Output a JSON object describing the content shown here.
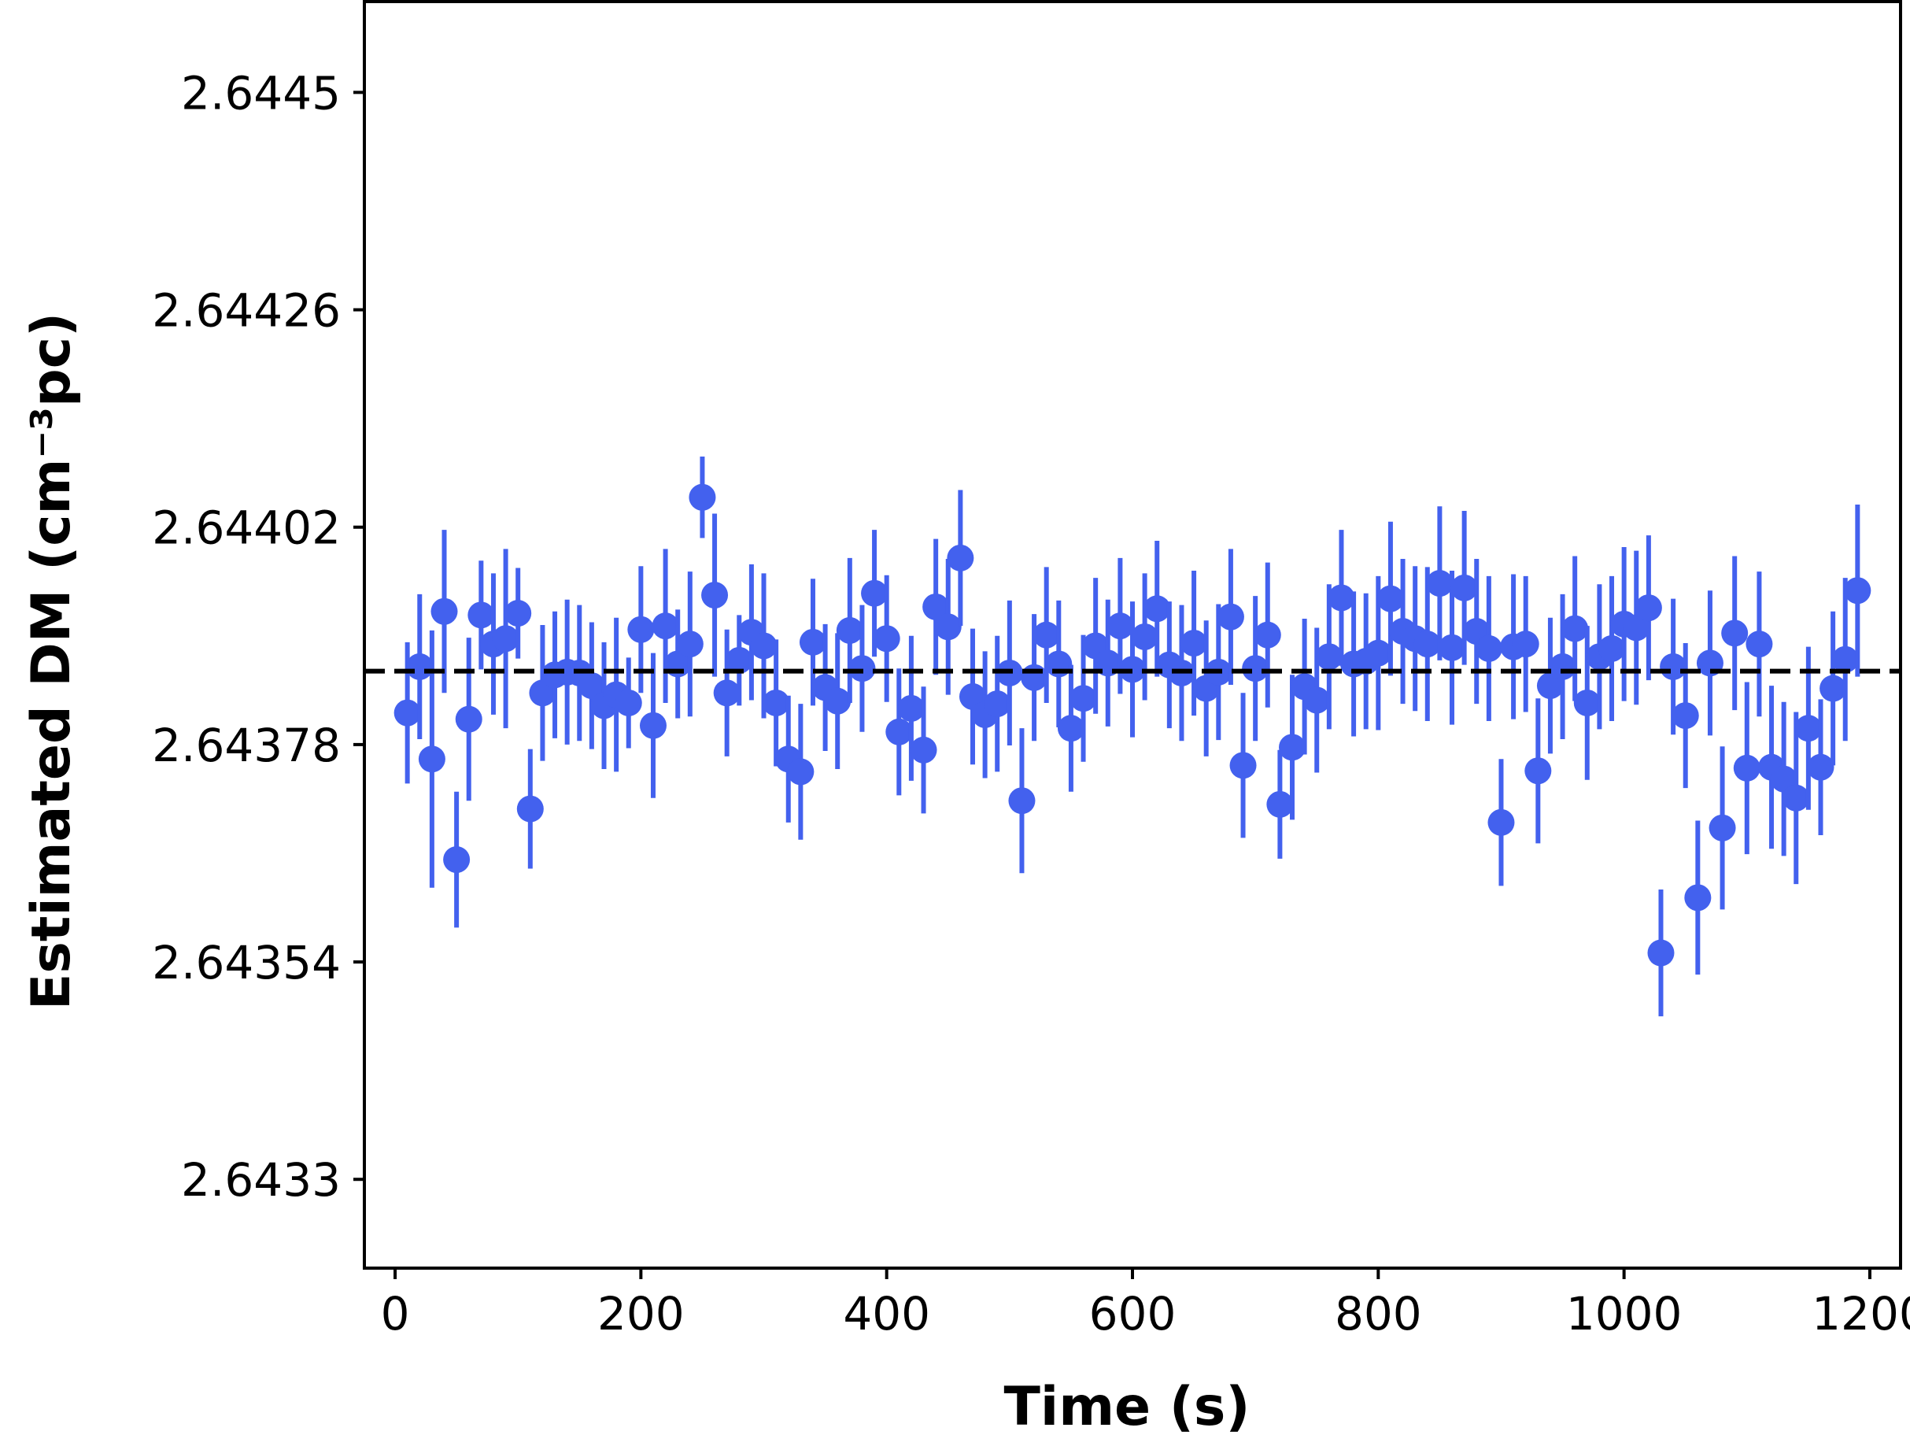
{
  "chart_data": {
    "type": "scatter",
    "xlabel": "Time (s)",
    "ylabel": "Estimated DM (cm⁻³pc)",
    "xlim": [
      -25,
      1225
    ],
    "ylim": [
      2.643202,
      2.644602
    ],
    "x_ticks": [
      0,
      200,
      400,
      600,
      800,
      1000,
      1200
    ],
    "x_tick_labels": [
      "0",
      "200",
      "400",
      "600",
      "800",
      "1000",
      "1200"
    ],
    "y_ticks": [
      2.6433,
      2.64354,
      2.64378,
      2.64402,
      2.64426,
      2.6445
    ],
    "y_tick_labels": [
      "2.6433",
      "2.64354",
      "2.64378",
      "2.64402",
      "2.64426",
      "2.6445"
    ],
    "grid": false,
    "reference_line": {
      "y": 2.643861,
      "style": "dashed",
      "color": "#000000"
    },
    "series": [
      {
        "color": "#4361ee",
        "error_bars": true,
        "x": [
          10,
          20,
          30,
          40,
          50,
          60,
          70,
          80,
          90,
          100,
          110,
          120,
          130,
          140,
          150,
          160,
          170,
          180,
          190,
          200,
          210,
          220,
          230,
          240,
          250,
          260,
          270,
          280,
          290,
          300,
          310,
          320,
          330,
          340,
          350,
          360,
          370,
          380,
          390,
          400,
          410,
          420,
          430,
          440,
          450,
          460,
          470,
          480,
          490,
          500,
          510,
          520,
          530,
          540,
          550,
          560,
          570,
          580,
          590,
          600,
          610,
          620,
          630,
          640,
          650,
          660,
          670,
          680,
          690,
          700,
          710,
          720,
          730,
          740,
          750,
          760,
          770,
          780,
          790,
          800,
          810,
          820,
          830,
          840,
          850,
          860,
          870,
          880,
          890,
          900,
          910,
          920,
          930,
          940,
          950,
          960,
          970,
          980,
          990,
          1000,
          1010,
          1020,
          1030,
          1040,
          1050,
          1060,
          1070,
          1080,
          1090,
          1100,
          1110,
          1120,
          1130,
          1140,
          1150,
          1160,
          1170,
          1180,
          1190
        ],
        "y": [
          2.643815,
          2.643866,
          2.643764,
          2.643927,
          2.643653,
          2.643808,
          2.643923,
          2.643891,
          2.643897,
          2.643925,
          2.643709,
          2.643837,
          2.643857,
          2.64386,
          2.643859,
          2.643845,
          2.643823,
          2.643835,
          2.643826,
          2.643907,
          2.643801,
          2.643911,
          2.643869,
          2.643891,
          2.644053,
          2.643945,
          2.643837,
          2.643873,
          2.643904,
          2.643889,
          2.643826,
          2.643764,
          2.64375,
          2.643893,
          2.643843,
          2.643828,
          2.643906,
          2.643864,
          2.643947,
          2.643897,
          2.643794,
          2.64382,
          2.643774,
          2.643932,
          2.64391,
          2.643986,
          2.643833,
          2.643813,
          2.643825,
          2.643859,
          2.643718,
          2.643854,
          2.643901,
          2.643869,
          2.643798,
          2.643831,
          2.643889,
          2.64387,
          2.643911,
          2.643863,
          2.643899,
          2.64393,
          2.643868,
          2.643859,
          2.643892,
          2.643842,
          2.64386,
          2.643921,
          2.643757,
          2.643864,
          2.643901,
          2.643714,
          2.643777,
          2.643844,
          2.643829,
          2.643877,
          2.643942,
          2.643869,
          2.643872,
          2.643881,
          2.643941,
          2.643905,
          2.643897,
          2.643891,
          2.643958,
          2.643887,
          2.643953,
          2.643905,
          2.643886,
          2.643694,
          2.643888,
          2.643891,
          2.643751,
          2.643845,
          2.643866,
          2.643908,
          2.643826,
          2.643877,
          2.643886,
          2.643913,
          2.643909,
          2.643931,
          2.64355,
          2.643866,
          2.643812,
          2.643611,
          2.64387,
          2.643688,
          2.643903,
          2.643754,
          2.643891,
          2.643755,
          2.643742,
          2.643721,
          2.643798,
          2.643755,
          2.643842,
          2.643874,
          2.64395
        ],
        "err": [
          7.8e-05,
          8e-05,
          0.000142,
          9e-05,
          7.5e-05,
          9e-05,
          6e-05,
          7.8e-05,
          9.9e-05,
          5e-05,
          6.6e-05,
          7.5e-05,
          7e-05,
          8e-05,
          7.5e-05,
          7e-05,
          7e-05,
          8.5e-05,
          5e-05,
          7e-05,
          8e-05,
          8.5e-05,
          6e-05,
          8e-05,
          4.5e-05,
          9e-05,
          7e-05,
          5e-05,
          7.5e-05,
          8e-05,
          7e-05,
          7e-05,
          7.5e-05,
          7e-05,
          7e-05,
          7.5e-05,
          8e-05,
          7e-05,
          7e-05,
          7e-05,
          7e-05,
          8e-05,
          7e-05,
          7.5e-05,
          7.5e-05,
          7.5e-05,
          7.5e-05,
          7e-05,
          7.5e-05,
          8e-05,
          8e-05,
          7e-05,
          7.5e-05,
          7e-05,
          7e-05,
          7e-05,
          7.5e-05,
          7e-05,
          7.5e-05,
          7.5e-05,
          7e-05,
          7.5e-05,
          7e-05,
          7.5e-05,
          8e-05,
          7.5e-05,
          7.5e-05,
          7.5e-05,
          8e-05,
          8e-05,
          8e-05,
          6e-05,
          8e-05,
          7.5e-05,
          8e-05,
          8e-05,
          7.5e-05,
          8e-05,
          7.5e-05,
          8.5e-05,
          8.5e-05,
          8e-05,
          8e-05,
          8.5e-05,
          8.5e-05,
          8.5e-05,
          8.5e-05,
          8e-05,
          8e-05,
          7e-05,
          8e-05,
          7.5e-05,
          8e-05,
          7.5e-05,
          8e-05,
          8e-05,
          8.5e-05,
          8e-05,
          8e-05,
          8.5e-05,
          8.5e-05,
          8e-05,
          7e-05,
          7.5e-05,
          8e-05,
          8.5e-05,
          8e-05,
          9e-05,
          8.5e-05,
          9.5e-05,
          8e-05,
          9e-05,
          8.5e-05,
          9.5e-05,
          9e-05,
          7.5e-05,
          8.5e-05,
          9e-05,
          9.5e-05
        ]
      }
    ]
  }
}
